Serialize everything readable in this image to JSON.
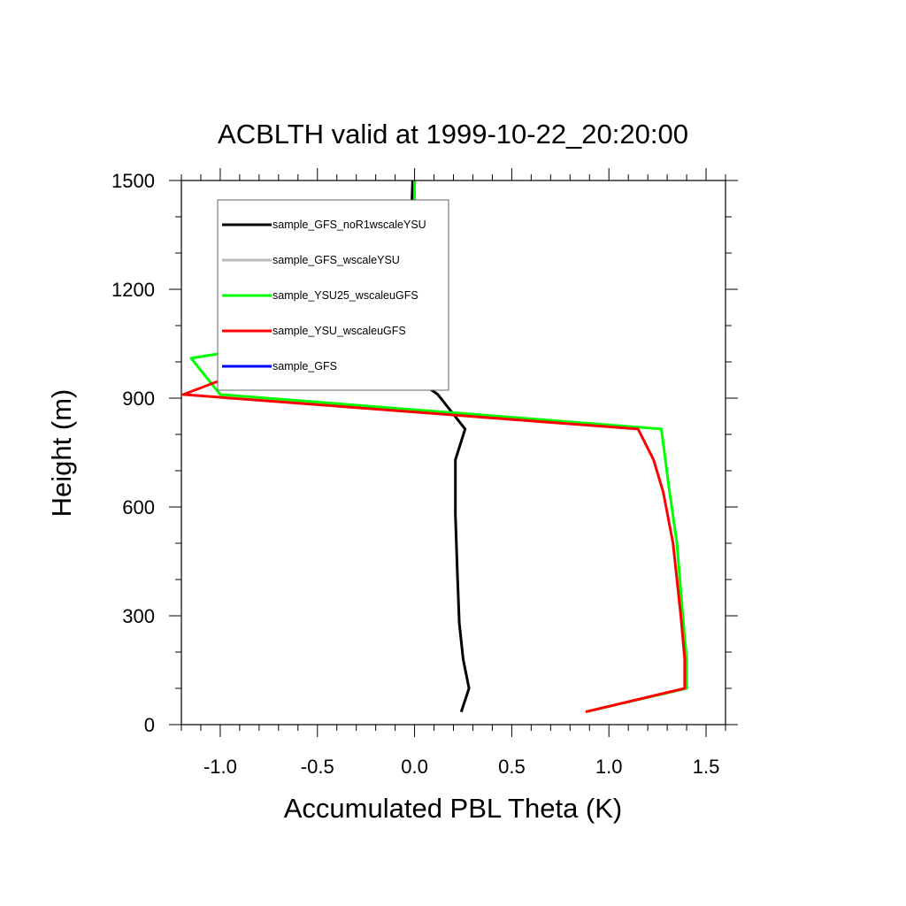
{
  "chart_data": {
    "type": "line",
    "title": "ACBLTH valid at 1999-10-22_20:20:00",
    "xlabel": "Accumulated PBL Theta (K)",
    "ylabel": "Height (m)",
    "xlim": [
      -1.2,
      1.6
    ],
    "ylim": [
      0,
      1500
    ],
    "x_ticks": [
      "-1.0",
      "-0.5",
      "0.0",
      "0.5",
      "1.0",
      "1.5"
    ],
    "y_ticks": [
      "0",
      "300",
      "600",
      "900",
      "1200",
      "1500"
    ],
    "x_tick_values": [
      -1.0,
      -0.5,
      0.0,
      0.5,
      1.0,
      1.5
    ],
    "y_tick_values": [
      0,
      300,
      600,
      900,
      1200,
      1500
    ],
    "legend_position": "top-left",
    "series": [
      {
        "name": "sample_GFS_noR1wscaleYSU",
        "color": "#000000",
        "points": [
          [
            0.24,
            35
          ],
          [
            0.28,
            100
          ],
          [
            0.25,
            180
          ],
          [
            0.23,
            280
          ],
          [
            0.22,
            420
          ],
          [
            0.21,
            580
          ],
          [
            0.21,
            730
          ],
          [
            0.26,
            815
          ],
          [
            0.12,
            910
          ],
          [
            -0.13,
            1005
          ],
          [
            -0.05,
            1080
          ],
          [
            -0.03,
            1200
          ],
          [
            -0.02,
            1350
          ],
          [
            -0.01,
            1500
          ]
        ]
      },
      {
        "name": "sample_GFS_wscaleYSU",
        "color": "#bbbbbb",
        "points": []
      },
      {
        "name": "sample_YSU25_wscaleuGFS",
        "color": "#00ff00",
        "points": [
          [
            0.88,
            35
          ],
          [
            1.4,
            100
          ],
          [
            1.4,
            180
          ],
          [
            1.38,
            300
          ],
          [
            1.35,
            500
          ],
          [
            1.31,
            650
          ],
          [
            1.27,
            815
          ],
          [
            -1.0,
            910
          ],
          [
            -1.15,
            1010
          ],
          [
            0.0,
            1110
          ],
          [
            0.0,
            1300
          ],
          [
            0.0,
            1500
          ]
        ]
      },
      {
        "name": "sample_YSU_wscaleuGFS",
        "color": "#ff0000",
        "points": [
          [
            0.88,
            35
          ],
          [
            1.39,
            100
          ],
          [
            1.39,
            180
          ],
          [
            1.37,
            300
          ],
          [
            1.33,
            500
          ],
          [
            1.28,
            640
          ],
          [
            1.23,
            730
          ],
          [
            1.15,
            815
          ],
          [
            -1.19,
            910
          ],
          [
            -0.7,
            1010
          ],
          [
            -0.03,
            1100
          ]
        ]
      },
      {
        "name": "sample_GFS",
        "color": "#0000ff",
        "points": []
      }
    ]
  }
}
